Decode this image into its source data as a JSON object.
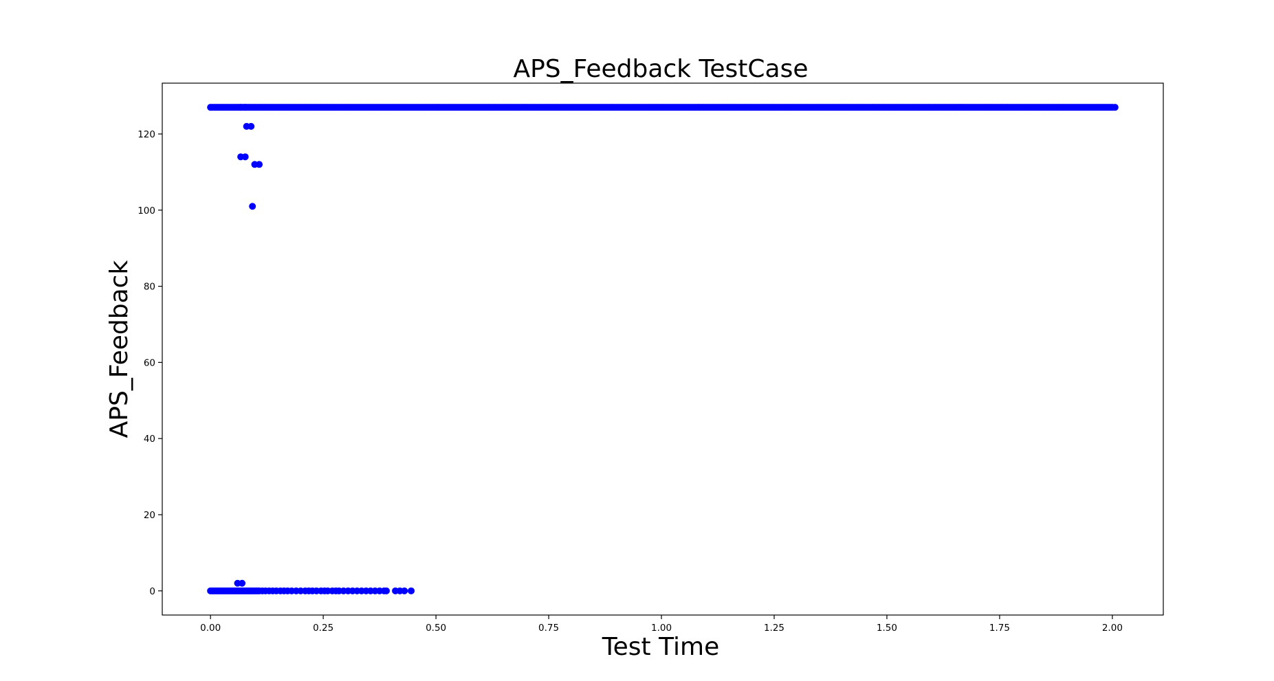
{
  "chart_data": {
    "type": "scatter",
    "title": "APS_Feedback TestCase",
    "xlabel": "Test Time",
    "ylabel": "APS_Feedback",
    "xlim": [
      -0.107,
      2.113
    ],
    "ylim": [
      -6.35,
      133.35
    ],
    "x_ticks": [
      0.0,
      0.25,
      0.5,
      0.75,
      1.0,
      1.25,
      1.5,
      1.75,
      2.0
    ],
    "x_tick_labels": [
      "0.00",
      "0.25",
      "0.50",
      "0.75",
      "1.00",
      "1.25",
      "1.50",
      "1.75",
      "2.00"
    ],
    "y_ticks": [
      0,
      20,
      40,
      60,
      80,
      100,
      120
    ],
    "y_tick_labels": [
      "0",
      "20",
      "40",
      "60",
      "80",
      "100",
      "120"
    ],
    "grid": false,
    "legend": "none",
    "marker_color": "#0000ff",
    "series": [
      {
        "bands": [
          {
            "y": 127,
            "x_start": 0.0,
            "x_end": 2.0,
            "step": 0.004
          },
          {
            "y": 0,
            "x_start": 0.0,
            "x_end": 0.11,
            "step": 0.003
          }
        ],
        "x": [
          0.067,
          0.077,
          0.08,
          0.09,
          0.067,
          0.077,
          0.098,
          0.108,
          0.093,
          0.06,
          0.07,
          0.115,
          0.122,
          0.13,
          0.138,
          0.146,
          0.155,
          0.163,
          0.171,
          0.18,
          0.19,
          0.2,
          0.21,
          0.218,
          0.226,
          0.235,
          0.245,
          0.253,
          0.26,
          0.27,
          0.278,
          0.285,
          0.295,
          0.305,
          0.315,
          0.325,
          0.335,
          0.345,
          0.355,
          0.365,
          0.375,
          0.385,
          0.39,
          0.41,
          0.42,
          0.43,
          0.445,
          2.006
        ],
        "y": [
          127,
          127,
          122,
          122,
          114,
          114,
          112,
          112,
          101,
          2,
          2,
          0,
          0,
          0,
          0,
          0,
          0,
          0,
          0,
          0,
          0,
          0,
          0,
          0,
          0,
          0,
          0,
          0,
          0,
          0,
          0,
          0,
          0,
          0,
          0,
          0,
          0,
          0,
          0,
          0,
          0,
          0,
          0,
          0,
          0,
          0,
          0,
          127
        ]
      }
    ]
  }
}
